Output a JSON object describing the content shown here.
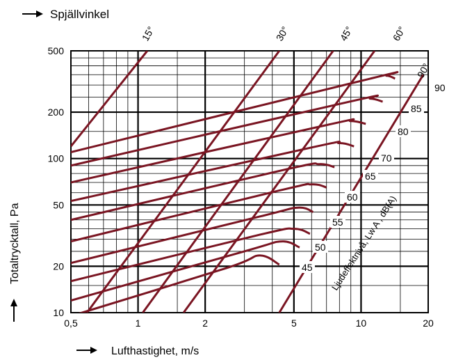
{
  "chart_data": {
    "type": "line",
    "title": "",
    "top_label": "Spjällvinkel",
    "xlabel": "Lufthastighet, m/s",
    "ylabel": "Totaltrycktall, Pa",
    "x_scale": "log",
    "y_scale": "log",
    "xlim": [
      0.5,
      20
    ],
    "ylim": [
      10,
      500
    ],
    "x_ticks": [
      "0,5",
      "1",
      "2",
      "5",
      "10",
      "20"
    ],
    "y_ticks": [
      "500",
      "200",
      "100",
      "50",
      "20",
      "10"
    ],
    "grid": true,
    "line_color": "#7a1522",
    "damper_angle_series": [
      {
        "name": "15°",
        "points": [
          [
            0.5,
            120
          ],
          [
            1.1,
            500
          ]
        ]
      },
      {
        "name": "30°",
        "points": [
          [
            0.59,
            10
          ],
          [
            4.3,
            500
          ]
        ]
      },
      {
        "name": "45°",
        "points": [
          [
            1.05,
            10
          ],
          [
            7.5,
            500
          ]
        ]
      },
      {
        "name": "60°",
        "points": [
          [
            1.6,
            10
          ],
          [
            11.5,
            500
          ]
        ]
      },
      {
        "name": "90°",
        "points": [
          [
            4.3,
            10
          ],
          [
            19.0,
            350
          ]
        ]
      }
    ],
    "sound_label_title": "Ljudeffektnivå, Lw A , dB(A)",
    "sound_level_series": [
      {
        "name": "45",
        "points": [
          [
            0.5,
            9.5
          ],
          [
            2.5,
            19.5
          ],
          [
            3.5,
            23.5
          ],
          [
            4.3,
            20.5
          ]
        ]
      },
      {
        "name": "50",
        "points": [
          [
            0.5,
            12
          ],
          [
            3.0,
            25
          ],
          [
            4.4,
            29
          ],
          [
            5.3,
            26.5
          ]
        ]
      },
      {
        "name": "55",
        "points": [
          [
            0.5,
            16
          ],
          [
            3.5,
            32
          ],
          [
            5.0,
            35
          ],
          [
            5.9,
            32.5
          ]
        ]
      },
      {
        "name": "",
        "points": [
          [
            0.5,
            21
          ],
          [
            3.5,
            42
          ],
          [
            5.2,
            48
          ],
          [
            6.1,
            45
          ]
        ]
      },
      {
        "name": "60",
        "points": [
          [
            0.5,
            29
          ],
          [
            4.3,
            62
          ],
          [
            6.0,
            68
          ],
          [
            7.0,
            65
          ]
        ]
      },
      {
        "name": "65",
        "points": [
          [
            0.5,
            40
          ],
          [
            4.6,
            85
          ],
          [
            6.5,
            92
          ],
          [
            7.6,
            88
          ]
        ]
      },
      {
        "name": "70",
        "points": [
          [
            0.5,
            53
          ],
          [
            6.0,
            118
          ],
          [
            8.0,
            126
          ],
          [
            9.3,
            120
          ]
        ]
      },
      {
        "name": "80",
        "points": [
          [
            0.5,
            70
          ],
          [
            7.0,
            165
          ],
          [
            9.0,
            175
          ],
          [
            10.5,
            168
          ]
        ]
      },
      {
        "name": "85",
        "points": [
          [
            0.5,
            90
          ],
          [
            9.0,
            235
          ],
          [
            11.0,
            245
          ],
          [
            12.5,
            234
          ]
        ]
      },
      {
        "name": "90",
        "points": [
          [
            0.5,
            110
          ],
          [
            11.0,
            330
          ],
          [
            13.0,
            345
          ],
          [
            14.2,
            330
          ]
        ]
      }
    ],
    "sound_level_labels": [
      "45",
      "50",
      "55",
      "60",
      "65",
      "70",
      "80",
      "85",
      "90"
    ],
    "damper_label_90": "90°"
  }
}
